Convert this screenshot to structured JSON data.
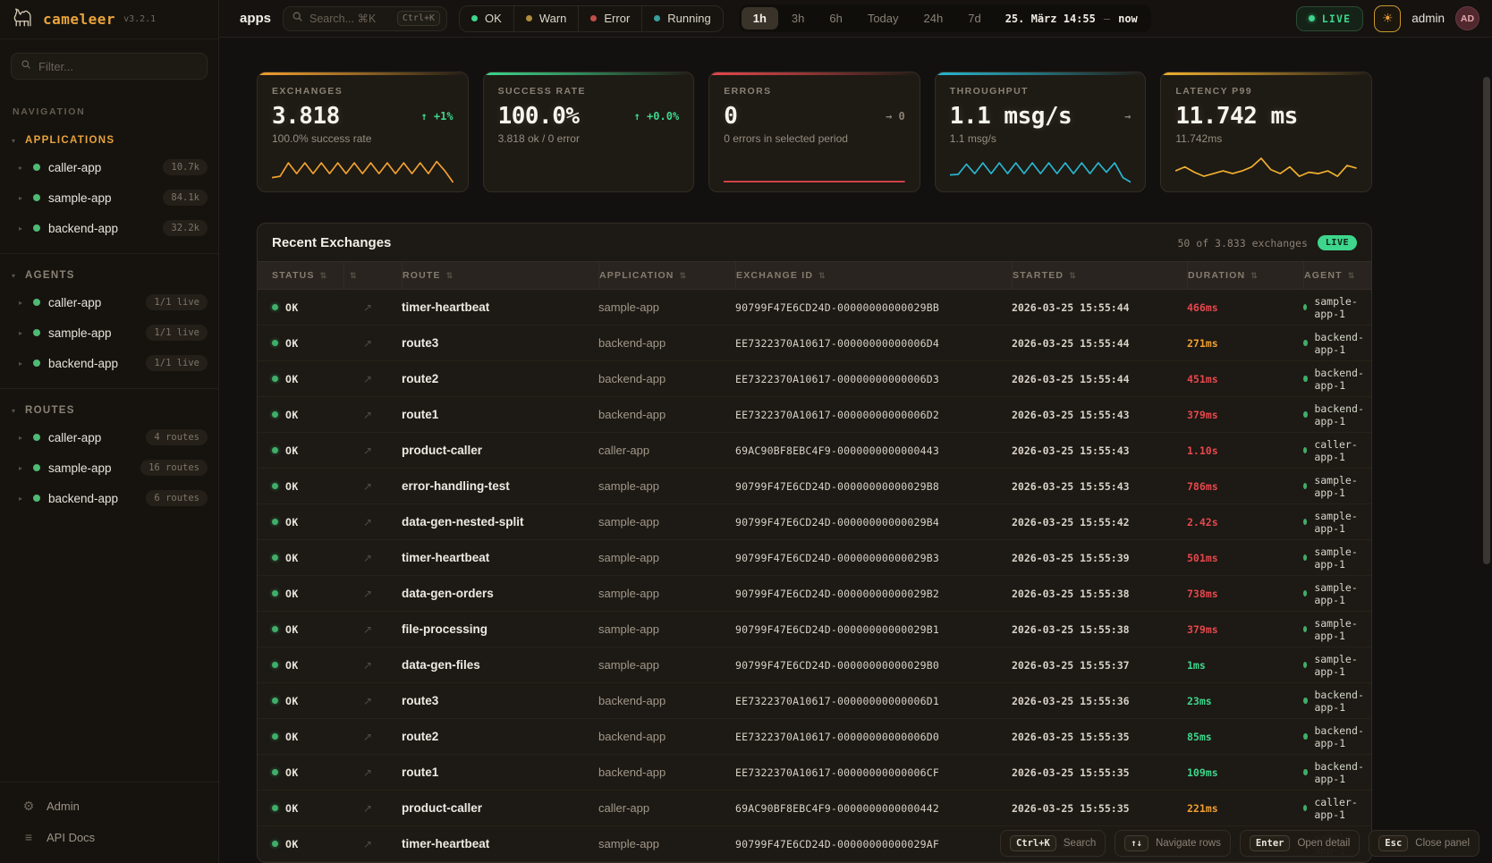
{
  "brand": {
    "name": "cameleer",
    "version": "v3.2.1"
  },
  "sidebar": {
    "filter_placeholder": "Filter...",
    "nav_label": "NAVIGATION",
    "sections": [
      {
        "label": "APPLICATIONS",
        "active": true,
        "items": [
          {
            "name": "caller-app",
            "badge": "10.7k"
          },
          {
            "name": "sample-app",
            "badge": "84.1k"
          },
          {
            "name": "backend-app",
            "badge": "32.2k"
          }
        ]
      },
      {
        "label": "AGENTS",
        "active": false,
        "items": [
          {
            "name": "caller-app",
            "badge": "1/1 live"
          },
          {
            "name": "sample-app",
            "badge": "1/1 live"
          },
          {
            "name": "backend-app",
            "badge": "1/1 live"
          }
        ]
      },
      {
        "label": "ROUTES",
        "active": false,
        "items": [
          {
            "name": "caller-app",
            "badge": "4 routes"
          },
          {
            "name": "sample-app",
            "badge": "16 routes"
          },
          {
            "name": "backend-app",
            "badge": "6 routes"
          }
        ]
      }
    ],
    "footer": [
      {
        "icon": "gear-icon",
        "label": "Admin"
      },
      {
        "icon": "docs-icon",
        "label": "API Docs"
      }
    ]
  },
  "topbar": {
    "context_label": "apps",
    "search_placeholder": "Search... ⌘K",
    "search_kbd": "Ctrl+K",
    "status_filters": [
      {
        "label": "OK",
        "color": "#3dd68c"
      },
      {
        "label": "Warn",
        "color": "#b08c3e"
      },
      {
        "label": "Error",
        "color": "#c0504a"
      },
      {
        "label": "Running",
        "color": "#3a9e9b"
      }
    ],
    "time_ranges": [
      {
        "label": "1h",
        "active": true
      },
      {
        "label": "3h",
        "active": false
      },
      {
        "label": "6h",
        "active": false
      },
      {
        "label": "Today",
        "active": false
      },
      {
        "label": "24h",
        "active": false
      },
      {
        "label": "7d",
        "active": false
      }
    ],
    "date_display": {
      "start": "25. März 14:55",
      "separator": "–",
      "end": "now"
    },
    "live_label": "LIVE",
    "user": {
      "name": "admin",
      "initials": "AD"
    }
  },
  "cards": [
    {
      "label": "EXCHANGES",
      "value": "3.818",
      "delta": "↑ +1%",
      "delta_color": "green",
      "subtitle": "100.0% success rate",
      "accent": "#f0a030",
      "spark": [
        2,
        2.5,
        7.5,
        3.5,
        7.5,
        3.5,
        7.5,
        3.5,
        7.5,
        3.5,
        7.5,
        3.5,
        7.5,
        3.5,
        7.5,
        3.5,
        7.5,
        3.5,
        7.5,
        3.5,
        8,
        4.5,
        0.2
      ]
    },
    {
      "label": "SUCCESS RATE",
      "value": "100.0%",
      "delta": "↑ +0.0%",
      "delta_color": "green",
      "subtitle": "3.818 ok / 0 error",
      "accent": "#3dd68c",
      "spark": []
    },
    {
      "label": "ERRORS",
      "value": "0",
      "delta": "→ 0",
      "delta_color": "gray",
      "subtitle": "0 errors in selected period",
      "accent": "#e5484d",
      "spark": [
        0.5,
        0.5
      ]
    },
    {
      "label": "THROUGHPUT",
      "value": "1.1 msg/s",
      "delta": "→",
      "delta_color": "gray",
      "subtitle": "1.1 msg/s",
      "accent": "#29b6cf",
      "spark": [
        3,
        3.2,
        7,
        3.5,
        7.5,
        3.5,
        7.5,
        3.5,
        7.5,
        3.5,
        7.5,
        3.5,
        7.5,
        3.5,
        7.5,
        3.5,
        7.5,
        3.5,
        7.5,
        4,
        7.5,
        2,
        0.2
      ]
    },
    {
      "label": "LATENCY P99",
      "value": "11.742 ms",
      "delta": "",
      "delta_color": "gray",
      "subtitle": "11.742ms",
      "accent": "#f0b030",
      "spark": [
        4.5,
        6,
        4,
        2.5,
        3.5,
        4.5,
        3.5,
        4.5,
        6,
        9.2,
        5,
        3.5,
        6,
        2.5,
        4,
        3.5,
        4.5,
        2.5,
        6.5,
        5.5
      ]
    }
  ],
  "table": {
    "title": "Recent Exchanges",
    "summary": "50 of 3.833 exchanges",
    "live_label": "LIVE",
    "columns": [
      "STATUS",
      "",
      "ROUTE",
      "APPLICATION",
      "EXCHANGE ID",
      "STARTED",
      "DURATION",
      "AGENT"
    ],
    "rows": [
      {
        "status": "OK",
        "route": "timer-heartbeat",
        "application": "sample-app",
        "exchange_id": "90799F47E6CD24D-00000000000029BB",
        "started": "2026-03-25 15:55:44",
        "duration": "466ms",
        "duration_color": "red",
        "agent": "sample-app-1"
      },
      {
        "status": "OK",
        "route": "route3",
        "application": "backend-app",
        "exchange_id": "EE7322370A10617-00000000000006D4",
        "started": "2026-03-25 15:55:44",
        "duration": "271ms",
        "duration_color": "orange",
        "agent": "backend-app-1"
      },
      {
        "status": "OK",
        "route": "route2",
        "application": "backend-app",
        "exchange_id": "EE7322370A10617-00000000000006D3",
        "started": "2026-03-25 15:55:44",
        "duration": "451ms",
        "duration_color": "red",
        "agent": "backend-app-1"
      },
      {
        "status": "OK",
        "route": "route1",
        "application": "backend-app",
        "exchange_id": "EE7322370A10617-00000000000006D2",
        "started": "2026-03-25 15:55:43",
        "duration": "379ms",
        "duration_color": "red",
        "agent": "backend-app-1"
      },
      {
        "status": "OK",
        "route": "product-caller",
        "application": "caller-app",
        "exchange_id": "69AC90BF8EBC4F9-0000000000000443",
        "started": "2026-03-25 15:55:43",
        "duration": "1.10s",
        "duration_color": "red",
        "agent": "caller-app-1"
      },
      {
        "status": "OK",
        "route": "error-handling-test",
        "application": "sample-app",
        "exchange_id": "90799F47E6CD24D-00000000000029B8",
        "started": "2026-03-25 15:55:43",
        "duration": "786ms",
        "duration_color": "red",
        "agent": "sample-app-1"
      },
      {
        "status": "OK",
        "route": "data-gen-nested-split",
        "application": "sample-app",
        "exchange_id": "90799F47E6CD24D-00000000000029B4",
        "started": "2026-03-25 15:55:42",
        "duration": "2.42s",
        "duration_color": "red",
        "agent": "sample-app-1"
      },
      {
        "status": "OK",
        "route": "timer-heartbeat",
        "application": "sample-app",
        "exchange_id": "90799F47E6CD24D-00000000000029B3",
        "started": "2026-03-25 15:55:39",
        "duration": "501ms",
        "duration_color": "red",
        "agent": "sample-app-1"
      },
      {
        "status": "OK",
        "route": "data-gen-orders",
        "application": "sample-app",
        "exchange_id": "90799F47E6CD24D-00000000000029B2",
        "started": "2026-03-25 15:55:38",
        "duration": "738ms",
        "duration_color": "red",
        "agent": "sample-app-1"
      },
      {
        "status": "OK",
        "route": "file-processing",
        "application": "sample-app",
        "exchange_id": "90799F47E6CD24D-00000000000029B1",
        "started": "2026-03-25 15:55:38",
        "duration": "379ms",
        "duration_color": "red",
        "agent": "sample-app-1"
      },
      {
        "status": "OK",
        "route": "data-gen-files",
        "application": "sample-app",
        "exchange_id": "90799F47E6CD24D-00000000000029B0",
        "started": "2026-03-25 15:55:37",
        "duration": "1ms",
        "duration_color": "green",
        "agent": "sample-app-1"
      },
      {
        "status": "OK",
        "route": "route3",
        "application": "backend-app",
        "exchange_id": "EE7322370A10617-00000000000006D1",
        "started": "2026-03-25 15:55:36",
        "duration": "23ms",
        "duration_color": "green",
        "agent": "backend-app-1"
      },
      {
        "status": "OK",
        "route": "route2",
        "application": "backend-app",
        "exchange_id": "EE7322370A10617-00000000000006D0",
        "started": "2026-03-25 15:55:35",
        "duration": "85ms",
        "duration_color": "green",
        "agent": "backend-app-1"
      },
      {
        "status": "OK",
        "route": "route1",
        "application": "backend-app",
        "exchange_id": "EE7322370A10617-00000000000006CF",
        "started": "2026-03-25 15:55:35",
        "duration": "109ms",
        "duration_color": "green",
        "agent": "backend-app-1"
      },
      {
        "status": "OK",
        "route": "product-caller",
        "application": "caller-app",
        "exchange_id": "69AC90BF8EBC4F9-0000000000000442",
        "started": "2026-03-25 15:55:35",
        "duration": "221ms",
        "duration_color": "orange",
        "agent": "caller-app-1"
      },
      {
        "status": "OK",
        "route": "timer-heartbeat",
        "application": "sample-app",
        "exchange_id": "90799F47E6CD24D-00000000000029AF",
        "started": "2026-03-25 1",
        "duration": "",
        "duration_color": "green",
        "agent": "sample-app-1"
      }
    ]
  },
  "shortcuts": [
    {
      "key": "Ctrl+K",
      "label": "Search"
    },
    {
      "key": "↑↓",
      "label": "Navigate rows"
    },
    {
      "key": "Enter",
      "label": "Open detail"
    },
    {
      "key": "Esc",
      "label": "Close panel"
    }
  ]
}
